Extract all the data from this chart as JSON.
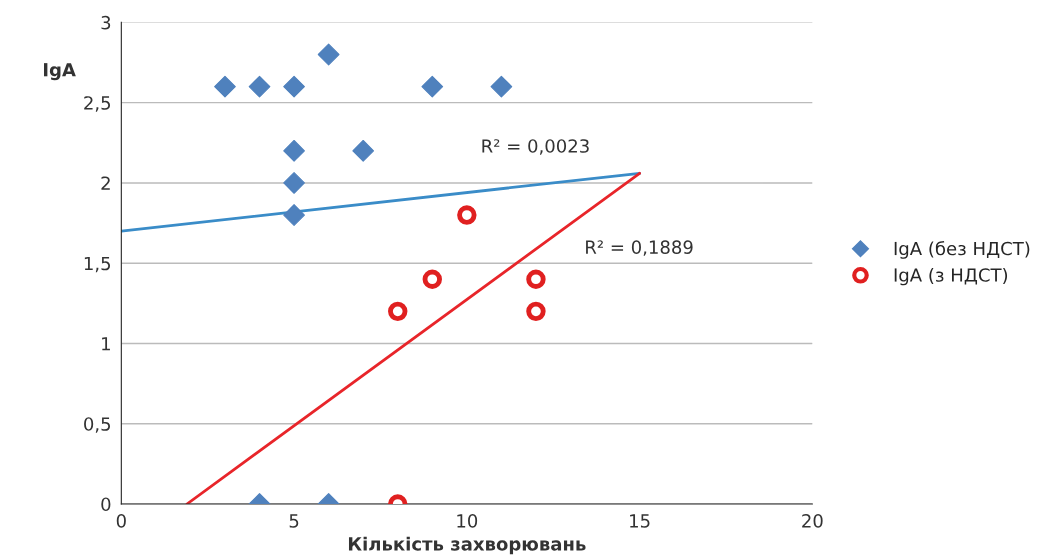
{
  "chart_data": {
    "type": "scatter",
    "xlabel": "Кількість захворювань",
    "ylabel": "IgA",
    "xlim": [
      0,
      20
    ],
    "xticks": [
      0,
      5,
      10,
      15,
      20
    ],
    "ylim": [
      0,
      3
    ],
    "yticks": [
      0,
      {
        "value": 0.5,
        "label": "0,5"
      },
      1,
      {
        "value": 1.5,
        "label": "1,5"
      },
      2,
      {
        "value": 2.5,
        "label": "2,5"
      },
      3
    ],
    "grid": "y",
    "legend": "right",
    "series": [
      {
        "name": "IgA (без НДСТ)",
        "marker": "diamond",
        "color": "#4f81bd",
        "x": [
          3,
          4,
          5,
          6,
          9,
          11,
          5,
          7,
          5,
          5,
          4,
          6
        ],
        "values": [
          2.6,
          2.6,
          2.6,
          2.8,
          2.6,
          2.6,
          2.2,
          2.2,
          2.0,
          1.8,
          0,
          0
        ]
      },
      {
        "name": "IgA (з НДСТ)",
        "marker": "circle",
        "color": "#e02020",
        "x": [
          10,
          9,
          12,
          8,
          12,
          8
        ],
        "values": [
          1.8,
          1.4,
          1.4,
          1.2,
          1.2,
          0
        ]
      },
      {
        "type": "line",
        "marker": "none",
        "color": "#3a8cc8",
        "x": [
          0,
          15
        ],
        "values": [
          1.7,
          2.06
        ]
      },
      {
        "type": "line",
        "marker": "none",
        "color": "#e8252a",
        "x": [
          1.9,
          15
        ],
        "values": [
          0,
          2.06
        ]
      }
    ],
    "annotations": [
      "R² = 0,0023",
      "R² = 0,1889"
    ]
  }
}
